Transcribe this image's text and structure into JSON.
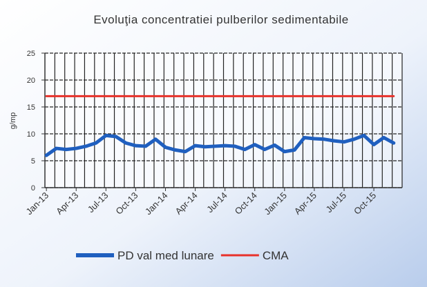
{
  "chart_data": {
    "type": "line",
    "title": "Evoluţia concentratiei pulberilor sedimentabile",
    "y_label": "g/mp",
    "categories": [
      "Jan-13",
      null,
      null,
      "Apr-13",
      null,
      null,
      "Jul-13",
      null,
      null,
      "Oct-13",
      null,
      null,
      "Jan-14",
      null,
      null,
      "Apr-14",
      null,
      null,
      "Jul-14",
      null,
      null,
      "Oct-14",
      null,
      null,
      "Jan-15",
      null,
      null,
      "Apr-15",
      null,
      null,
      "Jul-15",
      null,
      null,
      "Oct-15",
      null,
      null
    ],
    "series": [
      {
        "name": "PD val med lunare",
        "color": "#1f5fbf",
        "values": [
          6,
          7.3,
          7.1,
          7.3,
          7.7,
          8.3,
          9.7,
          9.5,
          8.3,
          7.8,
          7.7,
          9.0,
          7.5,
          7.0,
          6.7,
          7.8,
          7.6,
          7.7,
          7.8,
          7.7,
          7.1,
          8.0,
          7.1,
          7.9,
          6.7,
          7.0,
          9.3,
          9.1,
          9.0,
          8.7,
          8.5,
          9.0,
          9.7,
          8.0,
          9.3,
          8.3
        ]
      },
      {
        "name": "CMA",
        "color": "#e8312a",
        "values": [
          17,
          17,
          17,
          17,
          17,
          17,
          17,
          17,
          17,
          17,
          17,
          17,
          17,
          17,
          17,
          17,
          17,
          17,
          17,
          17,
          17,
          17,
          17,
          17,
          17,
          17,
          17,
          17,
          17,
          17,
          17,
          17,
          17,
          17,
          17,
          17
        ]
      }
    ],
    "ylim": [
      0,
      25
    ],
    "yticks": [
      0,
      5,
      10,
      15,
      20,
      25
    ],
    "grid": true,
    "legend": "bottom"
  }
}
